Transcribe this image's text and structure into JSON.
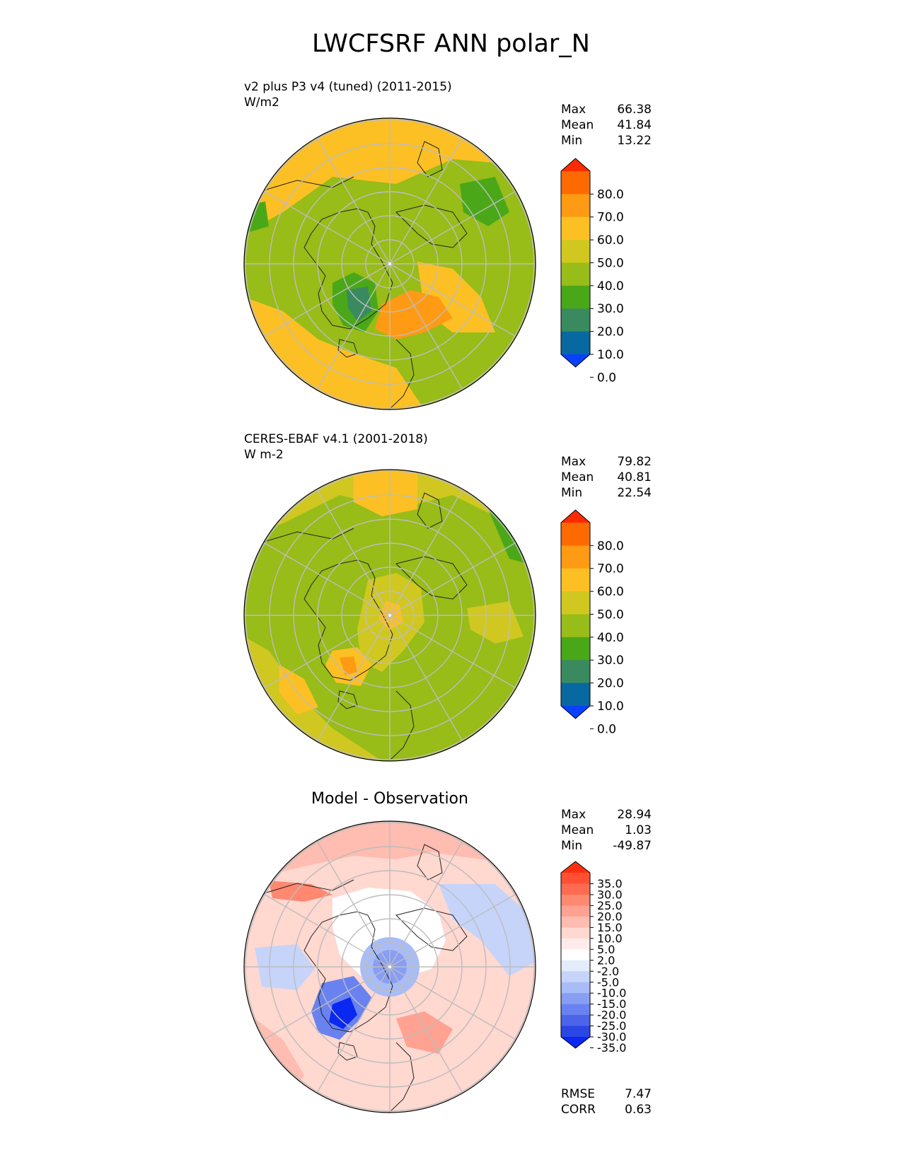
{
  "title": "LWCFSRF ANN polar_N",
  "panels": [
    {
      "title": "v2 plus P3 v4 (tuned) (2011-2015)",
      "units": "W/m2",
      "stats": [
        {
          "label": "Max",
          "value": "66.38"
        },
        {
          "label": "Mean",
          "value": "41.84"
        },
        {
          "label": "Min",
          "value": "13.22"
        }
      ]
    },
    {
      "title": "CERES-EBAF v4.1 (2001-2018)",
      "units": "W m-2",
      "stats": [
        {
          "label": "Max",
          "value": "79.82"
        },
        {
          "label": "Mean",
          "value": "40.81"
        },
        {
          "label": "Min",
          "value": "22.54"
        }
      ]
    },
    {
      "title": "Model - Observation",
      "units": "",
      "stats": [
        {
          "label": "Max",
          "value": "28.94"
        },
        {
          "label": "Mean",
          "value": "1.03"
        },
        {
          "label": "Min",
          "value": "-49.87"
        }
      ],
      "metrics": [
        {
          "label": "RMSE",
          "value": "7.47"
        },
        {
          "label": "CORR",
          "value": "0.63"
        }
      ]
    }
  ],
  "colorbar_main": {
    "ticks": [
      "80.0",
      "70.0",
      "60.0",
      "50.0",
      "40.0",
      "30.0",
      "20.0",
      "10.0",
      "0.0"
    ],
    "colors": [
      "#ff2a00",
      "#ff6a00",
      "#ff9a14",
      "#fcc024",
      "#d0c820",
      "#98bc18",
      "#4aa818",
      "#3a8a60",
      "#0868a0",
      "#0a40ff"
    ]
  },
  "colorbar_diff": {
    "ticks": [
      "35.0",
      "30.0",
      "25.0",
      "20.0",
      "15.0",
      "10.0",
      "5.0",
      "2.0",
      "-2.0",
      "-5.0",
      "-10.0",
      "-15.0",
      "-20.0",
      "-25.0",
      "-30.0",
      "-35.0"
    ],
    "colors": [
      "#ff3010",
      "#ff5034",
      "#ff6a50",
      "#ff8870",
      "#ffa292",
      "#ffbcb0",
      "#ffd8d0",
      "#ffecea",
      "#ffffff",
      "#e4ecfc",
      "#c6d4fa",
      "#a8bcf8",
      "#889ef4",
      "#6a82ef",
      "#4c64ea",
      "#2a46e4",
      "#0a28f0"
    ]
  },
  "chart_data": [
    {
      "type": "heatmap",
      "title": "v2 plus P3 v4 (tuned) (2011-2015)",
      "projection": "north polar stereographic",
      "units": "W/m2",
      "colorbar_levels": [
        0,
        10,
        20,
        30,
        40,
        50,
        60,
        70,
        80
      ],
      "max": 66.38,
      "mean": 41.84,
      "min": 13.22
    },
    {
      "type": "heatmap",
      "title": "CERES-EBAF v4.1 (2001-2018)",
      "projection": "north polar stereographic",
      "units": "W m-2",
      "colorbar_levels": [
        0,
        10,
        20,
        30,
        40,
        50,
        60,
        70,
        80
      ],
      "max": 79.82,
      "mean": 40.81,
      "min": 22.54
    },
    {
      "type": "heatmap",
      "title": "Model - Observation",
      "projection": "north polar stereographic",
      "colorbar_levels": [
        -35,
        -30,
        -25,
        -20,
        -15,
        -10,
        -5,
        -2,
        2,
        5,
        10,
        15,
        20,
        25,
        30,
        35
      ],
      "max": 28.94,
      "mean": 1.03,
      "min": -49.87,
      "rmse": 7.47,
      "corr": 0.63
    }
  ]
}
